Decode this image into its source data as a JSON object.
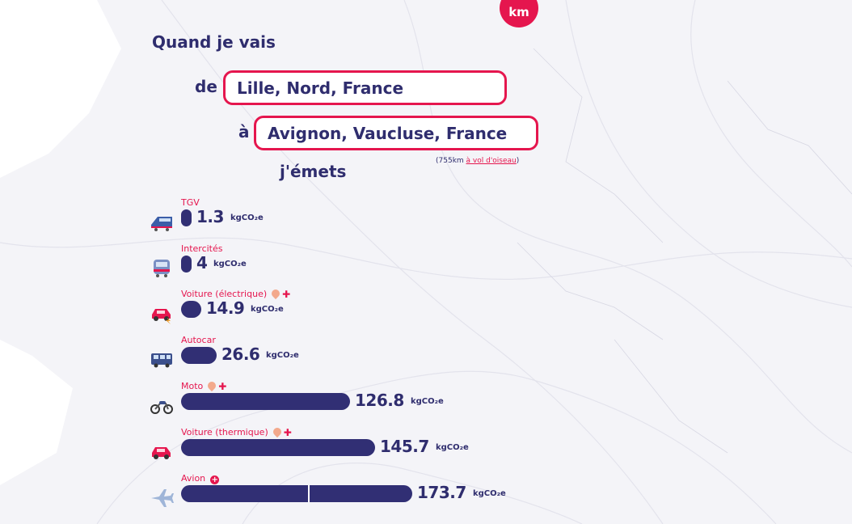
{
  "header": {
    "km_badge": "km",
    "title": "Quand je vais"
  },
  "route": {
    "from_label": "de",
    "from_value": "Lille, Nord, France",
    "to_label": "à",
    "to_value": "Avignon, Vaucluse, France",
    "distance_prefix": "(755km ",
    "distance_link": "à vol d'oiseau",
    "distance_suffix": ")",
    "emits_label": "j'émets"
  },
  "unit": "kgCO₂e",
  "modes": [
    {
      "name": "TGV",
      "value": 1.3,
      "display": "1.3",
      "icon": "tgv-train-icon",
      "badge": ""
    },
    {
      "name": "Intercités",
      "value": 4,
      "display": "4",
      "icon": "intercites-train-icon",
      "badge": ""
    },
    {
      "name": "Voiture (électrique)",
      "value": 14.9,
      "display": "14.9",
      "icon": "electric-car-icon",
      "badge": "pin-plus"
    },
    {
      "name": "Autocar",
      "value": 26.6,
      "display": "26.6",
      "icon": "bus-icon",
      "badge": ""
    },
    {
      "name": "Moto",
      "value": 126.8,
      "display": "126.8",
      "icon": "motorcycle-icon",
      "badge": "pin-plus"
    },
    {
      "name": "Voiture (thermique)",
      "value": 145.7,
      "display": "145.7",
      "icon": "car-icon",
      "badge": "pin-plus"
    },
    {
      "name": "Avion",
      "value": 173.7,
      "display": "173.7",
      "icon": "plane-icon",
      "badge": "plus-circle"
    }
  ],
  "colors": {
    "accent": "#e5164e",
    "bar": "#312f74",
    "text": "#2f2d6e"
  }
}
